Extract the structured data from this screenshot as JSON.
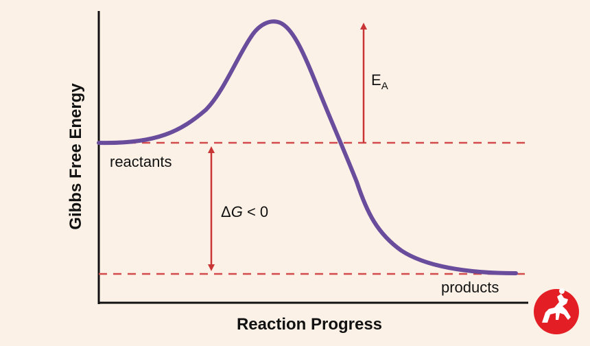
{
  "diagram": {
    "y_axis_label": "Gibbs Free Energy",
    "x_axis_label": "Reaction Progress",
    "reactants_label": "reactants",
    "products_label": "products",
    "activation_energy": {
      "base": "E",
      "subscript": "A"
    },
    "delta_g": {
      "symbol": "Δ",
      "variable": "G",
      "relation": " < 0"
    },
    "levels": {
      "reactants": 0.55,
      "peak": 1.0,
      "products": 0.0
    }
  },
  "colors": {
    "curve": "#6a4c9c",
    "dashed_lines": "#d24a4a",
    "arrows": "#c93434",
    "axes": "#111111",
    "background": "#fcf1e6",
    "logo": "#e31e24"
  },
  "icons": {
    "logo": "horse-rider-logo-icon"
  }
}
